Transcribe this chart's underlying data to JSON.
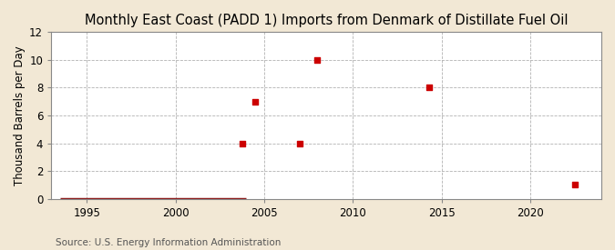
{
  "title": "Monthly East Coast (PADD 1) Imports from Denmark of Distillate Fuel Oil",
  "ylabel": "Thousand Barrels per Day",
  "source": "Source: U.S. Energy Information Administration",
  "outer_bg": "#f2e8d5",
  "plot_bg": "#ffffff",
  "line_color": "#8b1a1a",
  "marker_color": "#cc0000",
  "xlim": [
    1993,
    2024
  ],
  "ylim": [
    0,
    12
  ],
  "yticks": [
    0,
    2,
    4,
    6,
    8,
    10,
    12
  ],
  "xticks": [
    1995,
    2000,
    2005,
    2010,
    2015,
    2020
  ],
  "line_x_start": 1993.5,
  "line_x_end": 2004.0,
  "scatter_x": [
    2003.75,
    2004.5,
    2007.0,
    2008.0,
    2014.3,
    2022.5
  ],
  "scatter_y": [
    4,
    7,
    4,
    10,
    8,
    1
  ],
  "title_fontsize": 10.5,
  "label_fontsize": 8.5,
  "tick_fontsize": 8.5,
  "source_fontsize": 7.5
}
